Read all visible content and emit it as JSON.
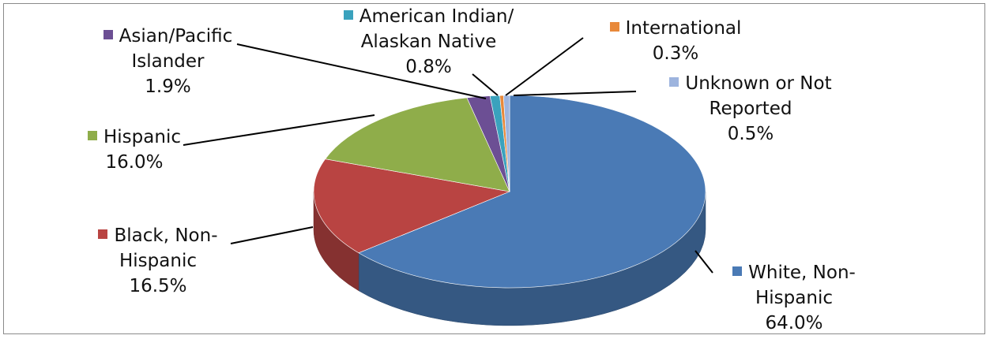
{
  "chart_data": {
    "type": "pie3d",
    "categories": [
      "White, Non-Hispanic",
      "Black, Non-Hispanic",
      "Hispanic",
      "Asian/Pacific Islander",
      "American Indian/ Alaskan Native",
      "International",
      "Unknown or Not Reported"
    ],
    "values": [
      64.0,
      16.5,
      16.0,
      1.9,
      0.8,
      0.3,
      0.5
    ],
    "value_labels": [
      "64.0%",
      "16.5%",
      "16.0%",
      "1.9%",
      "0.8%",
      "0.3%",
      "0.5%"
    ],
    "colors": [
      "#4a7ab5",
      "#b94442",
      "#8fad4a",
      "#6c4f94",
      "#3aa2bd",
      "#e8893a",
      "#9db4de"
    ]
  }
}
